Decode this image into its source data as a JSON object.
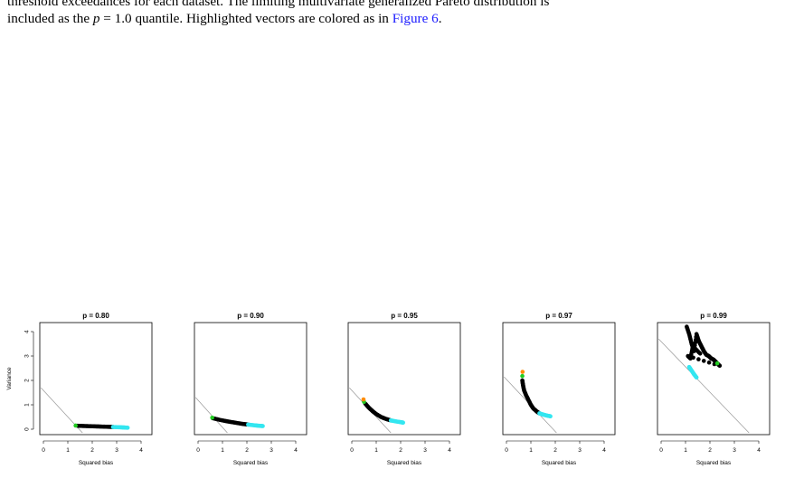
{
  "caption": {
    "line1": "threshold exceedances for each dataset. The limiting multivariate generalized Pareto distribution is",
    "line2_before": "included as the ",
    "line2_var": "p",
    "line2_middle": " = 1.0 quantile. Highlighted vectors are colored as in ",
    "line2_link": "Figure 6",
    "line2_after": "."
  },
  "chart_data": [
    {
      "type": "scatter",
      "title": "p = 0.80",
      "xlabel": "Squared bias",
      "ylabel": "Variance",
      "xlim": [
        0,
        4
      ],
      "ylim": [
        0,
        4
      ],
      "x_ticks": [
        0,
        1,
        2,
        3,
        4
      ],
      "y_ticks": [
        0,
        1,
        2,
        3,
        4
      ],
      "reference_line": {
        "intercept": 1.6,
        "slope": -1
      },
      "series": [
        {
          "color": "#000000",
          "points": [
            [
              1.4,
              0.14
            ],
            [
              1.7,
              0.13
            ],
            [
              2.0,
              0.12
            ],
            [
              2.3,
              0.11
            ],
            [
              2.6,
              0.1
            ],
            [
              2.85,
              0.09
            ]
          ]
        },
        {
          "color": "#33e6f0",
          "points": [
            [
              2.85,
              0.09
            ],
            [
              3.1,
              0.08
            ],
            [
              3.3,
              0.07
            ],
            [
              3.45,
              0.06
            ]
          ]
        },
        {
          "color": "#22cc22",
          "points": [
            [
              1.32,
              0.15
            ]
          ]
        },
        {
          "color": "#ff8c00",
          "points": []
        }
      ]
    },
    {
      "type": "scatter",
      "title": "p = 0.90",
      "xlabel": "Squared bias",
      "xlim": [
        0,
        4
      ],
      "ylim": [
        0,
        4
      ],
      "x_ticks": [
        0,
        1,
        2,
        3,
        4
      ],
      "y_ticks": [
        0,
        1,
        2,
        3,
        4
      ],
      "reference_line": {
        "intercept": 1.2,
        "slope": -1
      },
      "series": [
        {
          "color": "#000000",
          "points": [
            [
              0.6,
              0.45
            ],
            [
              0.9,
              0.38
            ],
            [
              1.2,
              0.32
            ],
            [
              1.5,
              0.27
            ],
            [
              1.8,
              0.22
            ],
            [
              2.05,
              0.19
            ]
          ]
        },
        {
          "color": "#33e6f0",
          "points": [
            [
              2.05,
              0.19
            ],
            [
              2.3,
              0.16
            ],
            [
              2.5,
              0.14
            ],
            [
              2.65,
              0.13
            ]
          ]
        },
        {
          "color": "#22cc22",
          "points": [
            [
              0.58,
              0.47
            ]
          ]
        },
        {
          "color": "#ff8c00",
          "points": []
        }
      ]
    },
    {
      "type": "scatter",
      "title": "p = 0.95",
      "xlabel": "Squared bias",
      "xlim": [
        0,
        4
      ],
      "ylim": [
        0,
        4
      ],
      "x_ticks": [
        0,
        1,
        2,
        3,
        4
      ],
      "y_ticks": [
        0,
        1,
        2,
        3,
        4
      ],
      "reference_line": {
        "intercept": 1.6,
        "slope": -1
      },
      "series": [
        {
          "color": "#000000",
          "points": [
            [
              0.55,
              1.05
            ],
            [
              0.7,
              0.88
            ],
            [
              0.85,
              0.74
            ],
            [
              1.0,
              0.62
            ],
            [
              1.2,
              0.5
            ],
            [
              1.4,
              0.42
            ],
            [
              1.6,
              0.36
            ]
          ]
        },
        {
          "color": "#33e6f0",
          "points": [
            [
              1.6,
              0.36
            ],
            [
              1.8,
              0.32
            ],
            [
              2.0,
              0.29
            ],
            [
              2.1,
              0.27
            ]
          ]
        },
        {
          "color": "#22cc22",
          "points": [
            [
              0.5,
              1.12
            ]
          ]
        },
        {
          "color": "#ff8c00",
          "points": [
            [
              0.48,
              1.22
            ]
          ]
        }
      ]
    },
    {
      "type": "scatter",
      "title": "p = 0.97",
      "xlabel": "Squared bias",
      "xlim": [
        0,
        4
      ],
      "ylim": [
        0,
        4
      ],
      "x_ticks": [
        0,
        1,
        2,
        3,
        4
      ],
      "y_ticks": [
        0,
        1,
        2,
        3,
        4
      ],
      "reference_line": {
        "intercept": 2.05,
        "slope": -1
      },
      "series": [
        {
          "color": "#000000",
          "points": [
            [
              0.65,
              2.0
            ],
            [
              0.68,
              1.8
            ],
            [
              0.72,
              1.6
            ],
            [
              0.8,
              1.4
            ],
            [
              0.9,
              1.2
            ],
            [
              1.0,
              1.0
            ],
            [
              1.1,
              0.85
            ],
            [
              1.25,
              0.72
            ],
            [
              1.35,
              0.65
            ]
          ]
        },
        {
          "color": "#33e6f0",
          "points": [
            [
              1.35,
              0.65
            ],
            [
              1.5,
              0.6
            ],
            [
              1.65,
              0.56
            ],
            [
              1.8,
              0.53
            ]
          ]
        },
        {
          "color": "#22cc22",
          "points": [
            [
              0.65,
              2.18
            ]
          ]
        },
        {
          "color": "#ff8c00",
          "points": [
            [
              0.66,
              2.35
            ]
          ]
        }
      ]
    },
    {
      "type": "scatter",
      "title": "p = 0.99",
      "xlabel": "Squared bias",
      "xlim": [
        0,
        4
      ],
      "ylim": [
        0,
        4
      ],
      "x_ticks": [
        0,
        1,
        2,
        3,
        4
      ],
      "y_ticks": [
        0,
        1,
        2,
        3,
        4
      ],
      "reference_line": {
        "intercept": 3.6,
        "slope": -1
      },
      "series": [
        {
          "color": "#000000",
          "points": [
            [
              1.05,
              4.2
            ],
            [
              1.15,
              3.9
            ],
            [
              1.25,
              3.5
            ],
            [
              1.35,
              3.2
            ],
            [
              1.45,
              3.9
            ],
            [
              1.55,
              3.6
            ],
            [
              1.65,
              3.4
            ],
            [
              1.75,
              3.2
            ],
            [
              1.85,
              3.05
            ],
            [
              1.95,
              3.0
            ],
            [
              2.05,
              2.9
            ],
            [
              2.15,
              2.85
            ],
            [
              2.25,
              2.75
            ],
            [
              2.4,
              2.6
            ],
            [
              1.1,
              3.0
            ],
            [
              1.2,
              2.9
            ],
            [
              1.3,
              3.4
            ],
            [
              1.6,
              3.1
            ]
          ]
        },
        {
          "color": "#33e6f0",
          "points": [
            [
              1.15,
              2.55
            ],
            [
              1.25,
              2.4
            ],
            [
              1.35,
              2.25
            ],
            [
              1.45,
              2.12
            ]
          ]
        },
        {
          "color": "#22cc22",
          "points": [
            [
              2.3,
              2.7
            ]
          ]
        },
        {
          "color": "#ff8c00",
          "points": []
        }
      ]
    }
  ]
}
